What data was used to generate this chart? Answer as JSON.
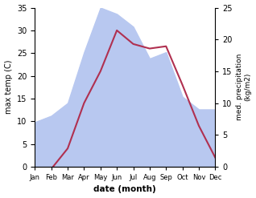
{
  "months": [
    "Jan",
    "Feb",
    "Mar",
    "Apr",
    "May",
    "Jun",
    "Jul",
    "Aug",
    "Sep",
    "Oct",
    "Nov",
    "Dec"
  ],
  "temperature": [
    -0.5,
    -0.5,
    4.0,
    14.0,
    21.0,
    30.0,
    27.0,
    26.0,
    26.5,
    18.0,
    9.0,
    2.0
  ],
  "precipitation": [
    7,
    8,
    10,
    18,
    25,
    24,
    22,
    17,
    18,
    11,
    9,
    9
  ],
  "temp_color": "#b03050",
  "precip_fill_color": "#b8c8f0",
  "ylabel_left": "max temp (C)",
  "ylabel_right": "med. precipitation\n(kg/m2)",
  "xlabel": "date (month)",
  "ylim_left": [
    0,
    35
  ],
  "ylim_right": [
    0,
    25
  ],
  "yticks_left": [
    0,
    5,
    10,
    15,
    20,
    25,
    30,
    35
  ],
  "yticks_right": [
    0,
    5,
    10,
    15,
    20,
    25
  ],
  "right_tick_labels": [
    "0",
    "5",
    "10",
    "15",
    "20",
    "25"
  ],
  "bg_color": "#ffffff"
}
